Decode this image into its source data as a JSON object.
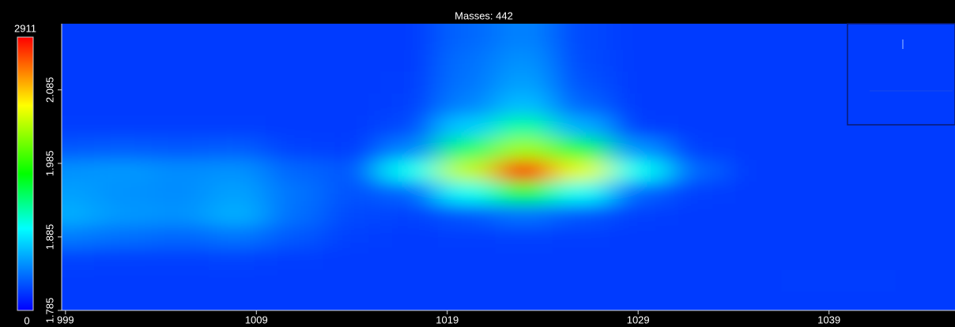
{
  "chart_data": {
    "type": "heatmap",
    "title": "Masses: 442",
    "x": [
      999,
      1002,
      1005,
      1008,
      1011,
      1014,
      1017,
      1020,
      1023,
      1026,
      1029,
      1032,
      1035,
      1038,
      1041,
      1044
    ],
    "y": [
      2.155,
      2.125,
      2.095,
      2.065,
      2.035,
      2.005,
      1.975,
      1.945,
      1.915,
      1.885,
      1.855,
      1.825,
      1.795
    ],
    "z": [
      [
        200,
        200,
        200,
        200,
        200,
        200,
        200,
        350,
        450,
        250,
        200,
        200,
        200,
        200,
        200,
        200
      ],
      [
        200,
        200,
        200,
        200,
        200,
        200,
        200,
        380,
        500,
        260,
        200,
        200,
        200,
        200,
        200,
        200
      ],
      [
        200,
        200,
        200,
        200,
        200,
        200,
        210,
        400,
        550,
        280,
        200,
        200,
        200,
        200,
        200,
        200
      ],
      [
        200,
        200,
        200,
        200,
        200,
        200,
        220,
        450,
        650,
        350,
        200,
        200,
        200,
        200,
        200,
        200
      ],
      [
        210,
        210,
        210,
        210,
        200,
        200,
        260,
        700,
        1100,
        600,
        220,
        200,
        200,
        200,
        200,
        200
      ],
      [
        300,
        320,
        300,
        320,
        230,
        210,
        450,
        1200,
        1900,
        1300,
        500,
        220,
        200,
        200,
        200,
        200
      ],
      [
        500,
        520,
        480,
        500,
        350,
        300,
        900,
        2000,
        2911,
        2100,
        900,
        350,
        200,
        200,
        200,
        200
      ],
      [
        550,
        500,
        480,
        550,
        400,
        280,
        350,
        900,
        1400,
        900,
        350,
        220,
        200,
        200,
        200,
        200
      ],
      [
        600,
        520,
        500,
        600,
        380,
        250,
        230,
        300,
        400,
        300,
        220,
        200,
        200,
        200,
        200,
        200
      ],
      [
        420,
        380,
        350,
        400,
        300,
        220,
        200,
        210,
        220,
        210,
        200,
        200,
        200,
        200,
        200,
        200
      ],
      [
        230,
        220,
        220,
        230,
        210,
        200,
        200,
        200,
        200,
        200,
        200,
        200,
        200,
        200,
        200,
        200
      ],
      [
        200,
        200,
        200,
        200,
        200,
        200,
        200,
        200,
        200,
        200,
        200,
        200,
        200,
        210,
        210,
        200
      ],
      [
        200,
        200,
        200,
        200,
        200,
        200,
        200,
        200,
        200,
        200,
        200,
        200,
        200,
        200,
        200,
        200
      ]
    ],
    "xlim": [
      998.8,
      1045.6
    ],
    "ylim": [
      1.785,
      2.175
    ],
    "xticks": [
      999,
      1009,
      1019,
      1029,
      1039
    ],
    "yticks": [
      1.785,
      1.885,
      1.985,
      2.085
    ],
    "zlim": [
      0,
      2911
    ]
  }
}
